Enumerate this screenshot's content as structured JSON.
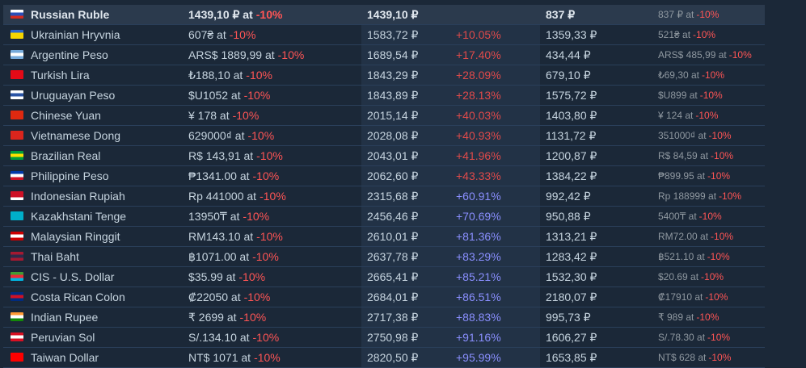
{
  "discount_label": "-10%",
  "rows": [
    {
      "flag": [
        "#ffffff",
        "#2a4fb8",
        "#d52b1e"
      ],
      "name": "Russian Ruble",
      "price": "1439,10 ₽ at",
      "converted": "1439,10 ₽",
      "diff": "",
      "base": "837 ₽",
      "sale": "837 ₽ at",
      "diff_class": "",
      "highlight": true
    },
    {
      "flag": [
        "#2d67c9",
        "#f6d500",
        "#f6d500"
      ],
      "name": "Ukrainian Hryvnia",
      "price": "607₴ at",
      "converted": "1583,72 ₽",
      "diff": "+10.05%",
      "base": "1359,33 ₽",
      "sale": "521₴ at",
      "diff_class": "pos-red"
    },
    {
      "flag": [
        "#75aadb",
        "#ffffff",
        "#75aadb"
      ],
      "name": "Argentine Peso",
      "price": "ARS$ 1889,99 at",
      "converted": "1689,54 ₽",
      "diff": "+17.40%",
      "base": "434,44 ₽",
      "sale": "ARS$ 485,99 at",
      "diff_class": "pos-red"
    },
    {
      "flag": [
        "#e30a17",
        "#e30a17",
        "#e30a17"
      ],
      "name": "Turkish Lira",
      "price": "₺188,10 at",
      "converted": "1843,29 ₽",
      "diff": "+28.09%",
      "base": "679,10 ₽",
      "sale": "₺69,30 at",
      "diff_class": "pos-red"
    },
    {
      "flag": [
        "#ffffff",
        "#2a54a5",
        "#ffffff"
      ],
      "name": "Uruguayan Peso",
      "price": "$U1052 at",
      "converted": "1843,89 ₽",
      "diff": "+28.13%",
      "base": "1575,72 ₽",
      "sale": "$U899 at",
      "diff_class": "pos-red"
    },
    {
      "flag": [
        "#de2910",
        "#de2910",
        "#de2910"
      ],
      "name": "Chinese Yuan",
      "price": "¥ 178 at",
      "converted": "2015,14 ₽",
      "diff": "+40.03%",
      "base": "1403,80 ₽",
      "sale": "¥ 124 at",
      "diff_class": "pos-red"
    },
    {
      "flag": [
        "#da251d",
        "#da251d",
        "#da251d"
      ],
      "name": "Vietnamese Dong",
      "price": "629000₫ at",
      "converted": "2028,08 ₽",
      "diff": "+40.93%",
      "base": "1131,72 ₽",
      "sale": "351000₫ at",
      "diff_class": "pos-red"
    },
    {
      "flag": [
        "#009c3b",
        "#ffdf00",
        "#009c3b"
      ],
      "name": "Brazilian Real",
      "price": "R$ 143,91 at",
      "converted": "2043,01 ₽",
      "diff": "+41.96%",
      "base": "1200,87 ₽",
      "sale": "R$ 84,59 at",
      "diff_class": "pos-red"
    },
    {
      "flag": [
        "#0038a8",
        "#ffffff",
        "#ce1126"
      ],
      "name": "Philippine Peso",
      "price": "₱1341.00 at",
      "converted": "2062,60 ₽",
      "diff": "+43.33%",
      "base": "1384,22 ₽",
      "sale": "₱899.95 at",
      "diff_class": "pos-red"
    },
    {
      "flag": [
        "#ce1126",
        "#ce1126",
        "#ffffff"
      ],
      "name": "Indonesian Rupiah",
      "price": "Rp 441000 at",
      "converted": "2315,68 ₽",
      "diff": "+60.91%",
      "base": "992,42 ₽",
      "sale": "Rp 188999 at",
      "diff_class": "pos-blue"
    },
    {
      "flag": [
        "#00afca",
        "#00afca",
        "#00afca"
      ],
      "name": "Kazakhstani Tenge",
      "price": "13950₸ at",
      "converted": "2456,46 ₽",
      "diff": "+70.69%",
      "base": "950,88 ₽",
      "sale": "5400₸ at",
      "diff_class": "pos-blue"
    },
    {
      "flag": [
        "#cc0001",
        "#ffffff",
        "#cc0001"
      ],
      "name": "Malaysian Ringgit",
      "price": "RM143.10 at",
      "converted": "2610,01 ₽",
      "diff": "+81.36%",
      "base": "1313,21 ₽",
      "sale": "RM72.00 at",
      "diff_class": "pos-blue"
    },
    {
      "flag": [
        "#a51931",
        "#2d2a4a",
        "#a51931"
      ],
      "name": "Thai Baht",
      "price": "฿1071.00 at",
      "converted": "2637,78 ₽",
      "diff": "+83.29%",
      "base": "1283,42 ₽",
      "sale": "฿521.10 at",
      "diff_class": "pos-blue"
    },
    {
      "flag": [
        "#3f9c35",
        "#ed2939",
        "#00b5e2"
      ],
      "name": "CIS - U.S. Dollar",
      "price": "$35.99 at",
      "converted": "2665,41 ₽",
      "diff": "+85.21%",
      "base": "1532,30 ₽",
      "sale": "$20.69 at",
      "diff_class": "pos-blue"
    },
    {
      "flag": [
        "#002b7f",
        "#ce1126",
        "#002b7f"
      ],
      "name": "Costa Rican Colon",
      "price": "₡22050 at",
      "converted": "2684,01 ₽",
      "diff": "+86.51%",
      "base": "2180,07 ₽",
      "sale": "₡17910 at",
      "diff_class": "pos-blue"
    },
    {
      "flag": [
        "#ff9933",
        "#ffffff",
        "#138808"
      ],
      "name": "Indian Rupee",
      "price": "₹ 2699 at",
      "converted": "2717,38 ₽",
      "diff": "+88.83%",
      "base": "995,73 ₽",
      "sale": "₹ 989 at",
      "diff_class": "pos-blue"
    },
    {
      "flag": [
        "#d91023",
        "#ffffff",
        "#d91023"
      ],
      "name": "Peruvian Sol",
      "price": "S/.134.10 at",
      "converted": "2750,98 ₽",
      "diff": "+91.16%",
      "base": "1606,27 ₽",
      "sale": "S/.78.30 at",
      "diff_class": "pos-blue"
    },
    {
      "flag": [
        "#fe0000",
        "#fe0000",
        "#fe0000"
      ],
      "name": "Taiwan Dollar",
      "price": "NT$ 1071 at",
      "converted": "2820,50 ₽",
      "diff": "+95.99%",
      "base": "1653,85 ₽",
      "sale": "NT$ 628 at",
      "diff_class": "pos-blue"
    }
  ]
}
